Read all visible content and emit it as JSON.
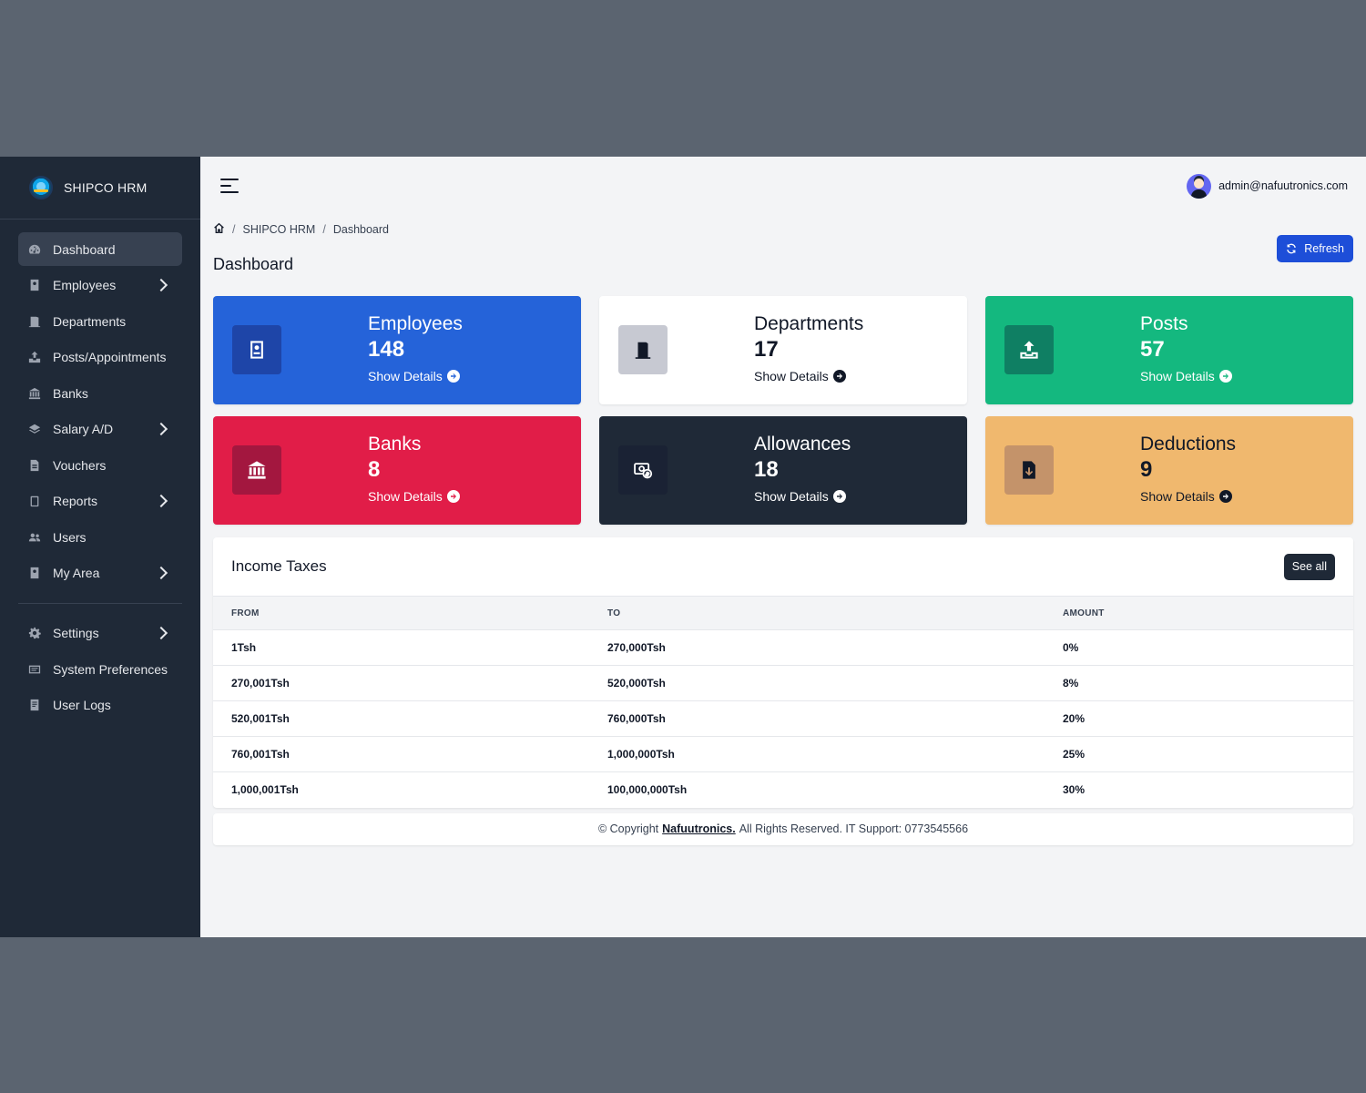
{
  "brand": {
    "name": "SHIPCO HRM"
  },
  "sidebar": {
    "items": [
      {
        "label": "Dashboard",
        "icon": "dashboard-icon"
      },
      {
        "label": "Employees",
        "icon": "id-badge-icon"
      },
      {
        "label": "Departments",
        "icon": "door-icon"
      },
      {
        "label": "Posts/Appointments",
        "icon": "upload-icon"
      },
      {
        "label": "Banks",
        "icon": "bank-icon"
      },
      {
        "label": "Salary A/D",
        "icon": "layers-icon"
      },
      {
        "label": "Vouchers",
        "icon": "voucher-icon"
      },
      {
        "label": "Reports",
        "icon": "clipboard-icon"
      },
      {
        "label": "Users",
        "icon": "users-icon"
      },
      {
        "label": "My Area",
        "icon": "id-badge-icon"
      }
    ],
    "bottom_items": [
      {
        "label": "Settings",
        "icon": "gear-icon"
      },
      {
        "label": "System Preferences",
        "icon": "preferences-icon"
      },
      {
        "label": "User Logs",
        "icon": "log-icon"
      }
    ]
  },
  "header": {
    "user_email": "admin@nafuutronics.com"
  },
  "breadcrumb": {
    "sep": "/",
    "items": [
      "SHIPCO HRM",
      "Dashboard"
    ]
  },
  "page": {
    "title": "Dashboard",
    "refresh_label": "Refresh"
  },
  "cards": [
    {
      "title": "Employees",
      "count": "148",
      "link": "Show Details"
    },
    {
      "title": "Departments",
      "count": "17",
      "link": "Show Details"
    },
    {
      "title": "Posts",
      "count": "57",
      "link": "Show Details"
    },
    {
      "title": "Banks",
      "count": "8",
      "link": "Show Details"
    },
    {
      "title": "Allowances",
      "count": "18",
      "link": "Show Details"
    },
    {
      "title": "Deductions",
      "count": "9",
      "link": "Show Details"
    }
  ],
  "income_taxes": {
    "title": "Income Taxes",
    "see_all": "See all",
    "columns": [
      "FROM",
      "TO",
      "AMOUNT"
    ],
    "rows": [
      [
        "1Tsh",
        "270,000Tsh",
        "0%"
      ],
      [
        "270,001Tsh",
        "520,000Tsh",
        "8%"
      ],
      [
        "520,001Tsh",
        "760,000Tsh",
        "20%"
      ],
      [
        "760,001Tsh",
        "1,000,000Tsh",
        "25%"
      ],
      [
        "1,000,001Tsh",
        "100,000,000Tsh",
        "30%"
      ]
    ]
  },
  "footer": {
    "prefix": "© Copyright",
    "company": "Nafuutronics.",
    "suffix": "All Rights Reserved. IT Support: 0773545566"
  },
  "colors": {
    "sidebar_bg": "#1f2937",
    "primary": "#2563d9",
    "success": "#14b87f",
    "danger": "#e11d48",
    "warning": "#f0b86e"
  }
}
